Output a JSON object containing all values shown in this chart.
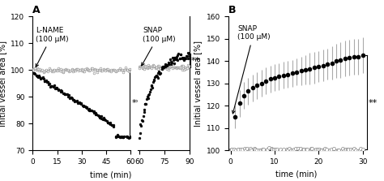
{
  "panel_A": {
    "title": "A",
    "xlabel": "time (min)",
    "ylabel": "Initial vessel area [%]",
    "ylim": [
      70,
      120
    ],
    "yticks": [
      70,
      80,
      90,
      100,
      110,
      120
    ],
    "lname_annotation": "L-NAME\n(100 μM)",
    "snap_annotation_A": "SNAP\n(100 μM)",
    "phase1_xticks": [
      0,
      15,
      30,
      45,
      60
    ],
    "phase2_xticks": [
      60,
      75,
      90
    ]
  },
  "panel_B": {
    "title": "B",
    "xlabel": "time (min)",
    "ylabel": "Initial vessel area [%]",
    "ylim": [
      100,
      160
    ],
    "yticks": [
      100,
      110,
      120,
      130,
      140,
      150,
      160
    ],
    "snap_annotation_B": "SNAP\n(100 μM)",
    "xticks": [
      0,
      10,
      20,
      30
    ]
  },
  "background_color": "#ffffff",
  "line_color_open": "#888888",
  "line_color_filled": "#000000",
  "marker_size_A": 2.0,
  "marker_size_B": 3.0,
  "fontsize_label": 7,
  "fontsize_tick": 6.5,
  "fontsize_annot": 6.5,
  "fontsize_title": 9,
  "fontsize_stars": 8
}
